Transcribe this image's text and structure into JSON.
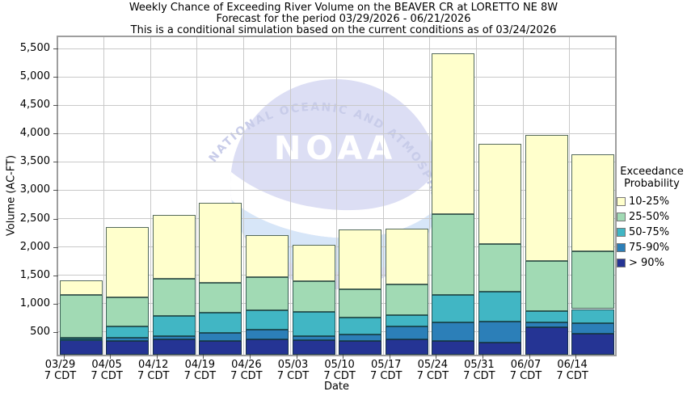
{
  "title": {
    "line1": "Weekly Chance of Exceeding River Volume on the BEAVER CR at LORETTO NE 8W",
    "line2": "Forecast for the period 03/29/2026 - 06/21/2026",
    "line3": "This is a conditional simulation based on the current conditions as of 03/24/2026"
  },
  "watermark": {
    "acronym": "NOAA",
    "ring_text": "NATIONAL OCEANIC AND ATMOSPHERIC ADMINISTRATION"
  },
  "chart_data": {
    "type": "bar",
    "stacked": true,
    "title": "Weekly Chance of Exceeding River Volume on the BEAVER CR at LORETTO NE 8W",
    "xlabel": "Date",
    "ylabel": "Volume (AC-FT)",
    "ylim": [
      100,
      5700
    ],
    "yticks": [
      500,
      1000,
      1500,
      2000,
      2500,
      3000,
      3500,
      4000,
      4500,
      5000,
      5500
    ],
    "grid": true,
    "legend_position": "right",
    "legend_title": [
      "Exceedance",
      "Probability"
    ],
    "categories": [
      "03/29",
      "04/05",
      "04/12",
      "04/19",
      "04/26",
      "05/03",
      "05/10",
      "05/17",
      "05/24",
      "05/31",
      "06/07",
      "06/14"
    ],
    "x_tick_sublabel": "7 CDT",
    "series": [
      {
        "label": "> 90%",
        "color": "#253494",
        "cumulative_tops": [
          350,
          345,
          365,
          340,
          370,
          355,
          345,
          370,
          345,
          320,
          585,
          470
        ]
      },
      {
        "label": "75-90%",
        "color": "#2C7FB8",
        "cumulative_tops": [
          375,
          395,
          425,
          480,
          540,
          425,
          455,
          600,
          665,
          690,
          665,
          655
        ]
      },
      {
        "label": "50-75%",
        "color": "#41B6C4",
        "cumulative_tops": [
          400,
          600,
          780,
          835,
          880,
          855,
          750,
          800,
          1155,
          1205,
          870,
          905
        ]
      },
      {
        "label": "25-50%",
        "color": "#A1DAB4",
        "cumulative_tops": [
          1150,
          1105,
          1435,
          1370,
          1465,
          1395,
          1250,
          1345,
          2575,
          2050,
          1750,
          1930
        ]
      },
      {
        "label": "10-25%",
        "color": "#FFFFCC",
        "cumulative_tops": [
          1415,
          2345,
          2560,
          2780,
          2215,
          2040,
          2315,
          2330,
          5420,
          3820,
          3980,
          3630
        ]
      }
    ]
  }
}
